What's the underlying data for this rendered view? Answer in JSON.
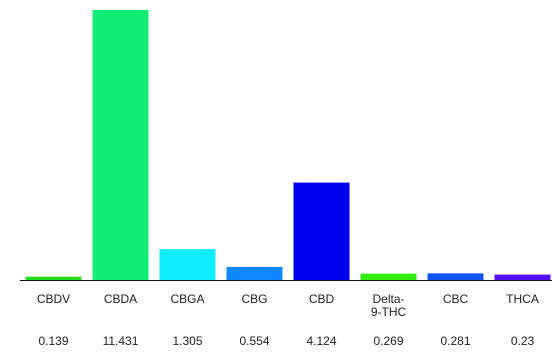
{
  "chart_data": {
    "type": "bar",
    "title": "",
    "xlabel": "",
    "ylabel": "",
    "categories": [
      "CBDV",
      "CBDA",
      "CBGA",
      "CBG",
      "CBD",
      "Delta-\n9-THC",
      "CBC",
      "THCA"
    ],
    "values": [
      0.139,
      11.431,
      1.305,
      0.554,
      4.124,
      0.269,
      0.281,
      0.23
    ],
    "value_labels": [
      "0.139",
      "11.431",
      "1.305",
      "0.554",
      "4.124",
      "0.269",
      "0.281",
      "0.23"
    ],
    "colors": [
      "#22dd22",
      "#11ee77",
      "#11eeff",
      "#1188ff",
      "#0000ee",
      "#33ee11",
      "#1155ee",
      "#5511ee"
    ],
    "ylim": [
      0,
      11.431
    ],
    "grid": false,
    "axis_color": "#111111"
  }
}
